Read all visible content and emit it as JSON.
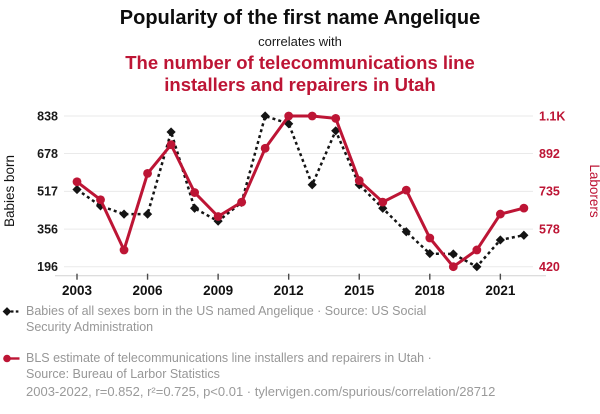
{
  "header": {
    "title": "Popularity of the first name Angelique",
    "connector": "correlates with",
    "subtitle": "The number of telecommunications line installers and repairers in Utah",
    "subtitle_lines": [
      "The number of telecommunications line",
      "installers and repairers in Utah"
    ]
  },
  "colors": {
    "accent_red": "#bd1535",
    "series_black": "#141414",
    "muted_text": "#979797",
    "grid_line": "#eaeaea",
    "axis_line": "#d2d2d2",
    "tick_mark": "#4a4a4a"
  },
  "chart_data": {
    "type": "line",
    "years": [
      2003,
      2004,
      2005,
      2006,
      2007,
      2008,
      2009,
      2010,
      2011,
      2012,
      2013,
      2014,
      2015,
      2016,
      2017,
      2018,
      2019,
      2020,
      2021,
      2022
    ],
    "x_tick_years": [
      2003,
      2006,
      2009,
      2012,
      2015,
      2018,
      2021
    ],
    "series": [
      {
        "name": "Babies of all sexes born in the US named Angelique",
        "axis": "left",
        "marker": "diamond",
        "line_style": "dashed",
        "color": "#141414",
        "values": [
          525,
          455,
          420,
          420,
          770,
          445,
          390,
          470,
          838,
          805,
          545,
          775,
          545,
          445,
          345,
          252,
          250,
          196,
          310,
          330
        ]
      },
      {
        "name": "BLS estimate of telecommunications line installers and repairers in Utah",
        "axis": "right",
        "marker": "circle",
        "line_style": "solid",
        "color": "#bd1535",
        "values": [
          775,
          700,
          490,
          810,
          930,
          730,
          630,
          690,
          915,
          1050,
          1050,
          1040,
          780,
          690,
          740,
          540,
          420,
          490,
          640,
          665
        ]
      }
    ],
    "left_axis": {
      "label": "Babies born",
      "min": 196,
      "max": 838,
      "ticks": [
        196,
        356,
        517,
        678,
        838
      ],
      "tick_labels": [
        "196",
        "356",
        "517",
        "678",
        "838"
      ]
    },
    "right_axis": {
      "label": "Laborers",
      "min": 420,
      "max": 1050,
      "ticks": [
        420,
        578,
        735,
        892,
        1050
      ],
      "tick_labels": [
        "420",
        "578",
        "735",
        "892",
        "1.1K"
      ]
    },
    "grid": true,
    "legend_position": "below"
  },
  "legend": {
    "items": [
      {
        "marker": "black-diamond-dashed",
        "lines": [
          "Babies of all sexes born in the US named Angelique · Source: US Social",
          "Security Administration"
        ]
      },
      {
        "marker": "red-circle-solid",
        "lines": [
          "BLS estimate of telecommunications line installers and repairers in Utah ·",
          "Source: Bureau of Larbor Statistics"
        ]
      }
    ]
  },
  "footer": {
    "text": "2003-2022, r=0.852, r²=0.725, p<0.01 · tylervigen.com/spurious/correlation/28712"
  }
}
